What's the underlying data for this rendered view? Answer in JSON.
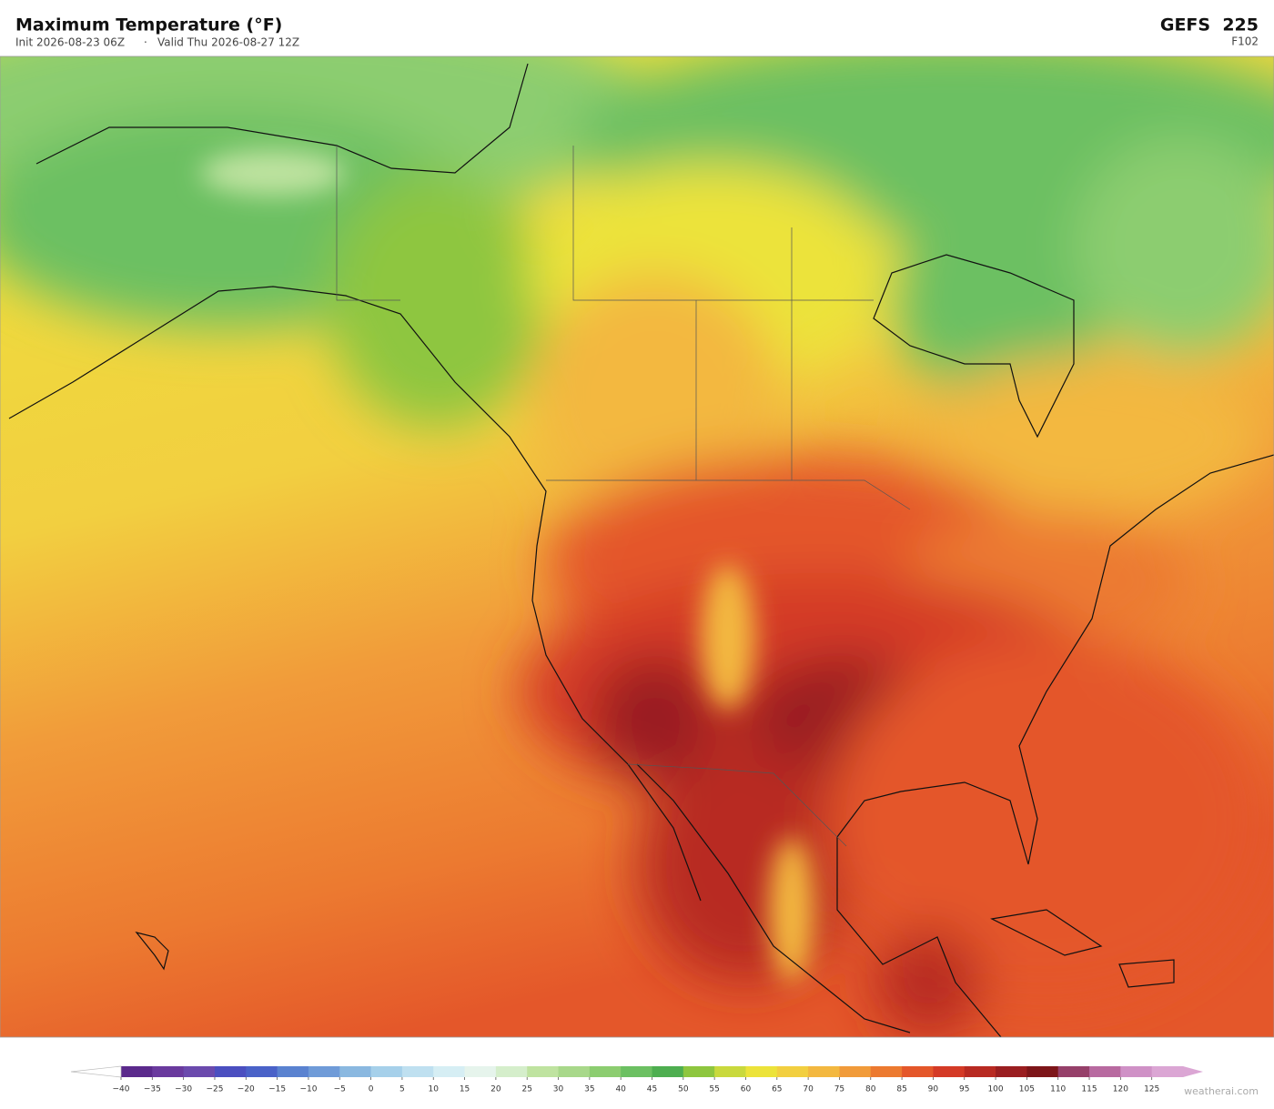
{
  "header": {
    "title": "Maximum Temperature  (°F)",
    "init": "Init 2026-08-23 06Z",
    "separator": "·",
    "valid": "Valid Thu 2026-08-27 12Z",
    "model": "GEFS  225",
    "forecast_hour": "F102"
  },
  "colorbar": {
    "range": [
      -40,
      130
    ],
    "step": 5,
    "colors": [
      "#5b2a8c",
      "#6a3a9e",
      "#6b4aad",
      "#4b4fc0",
      "#4a62c8",
      "#5a82d0",
      "#6f9bd8",
      "#8ab8e0",
      "#a6d0ea",
      "#bfe0f0",
      "#d6eef4",
      "#e6f4ec",
      "#d5eecb",
      "#bfe3a0",
      "#a8d88a",
      "#8ccd70",
      "#6cc062",
      "#4eae50",
      "#8ec63f",
      "#c9d93d",
      "#ece33a",
      "#f2cf40",
      "#f3b840",
      "#f19b3a",
      "#ec7a30",
      "#e4572a",
      "#d43a26",
      "#b82a22",
      "#9a1e20",
      "#7d1519",
      "#96406a",
      "#b86aa0",
      "#cf91c6",
      "#dba6d4"
    ],
    "under_color": "#ffffff",
    "over_color": "#dba6d4",
    "ticks": [
      {
        "value": -40,
        "label": "−40"
      },
      {
        "value": -35,
        "label": "−35"
      },
      {
        "value": -30,
        "label": "−30"
      },
      {
        "value": -25,
        "label": "−25"
      },
      {
        "value": -20,
        "label": "−20"
      },
      {
        "value": -15,
        "label": "−15"
      },
      {
        "value": -10,
        "label": "−10"
      },
      {
        "value": -5,
        "label": "−5"
      },
      0,
      5,
      10,
      15,
      20,
      25,
      30,
      35,
      40,
      45,
      50,
      55,
      60,
      65,
      70,
      75,
      80,
      85,
      90,
      95,
      100,
      105,
      110,
      115,
      120,
      125
    ]
  },
  "footer": {
    "credit": "weatherai.com"
  }
}
